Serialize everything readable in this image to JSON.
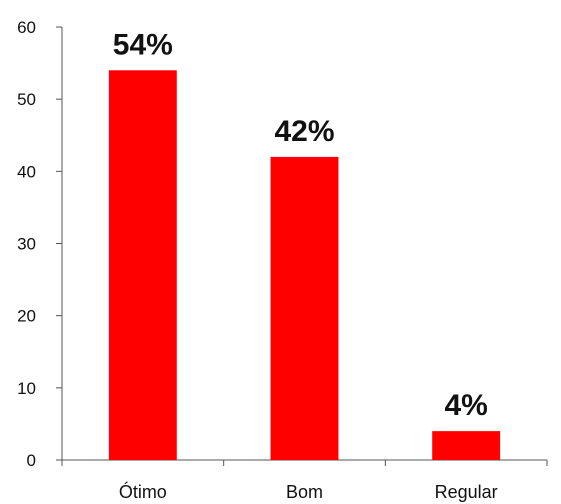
{
  "chart_data": {
    "type": "bar",
    "categories": [
      "Ótimo",
      "Bom",
      "Regular"
    ],
    "values": [
      54,
      42,
      4
    ],
    "data_labels": [
      "54%",
      "42%",
      "4%"
    ],
    "title": "",
    "xlabel": "",
    "ylabel": "",
    "ylim": [
      0,
      60
    ],
    "yticks": [
      "0",
      "10",
      "20",
      "30",
      "40",
      "50",
      "60"
    ],
    "grid": false,
    "legend": "none",
    "bar_color": "#ff0000"
  }
}
